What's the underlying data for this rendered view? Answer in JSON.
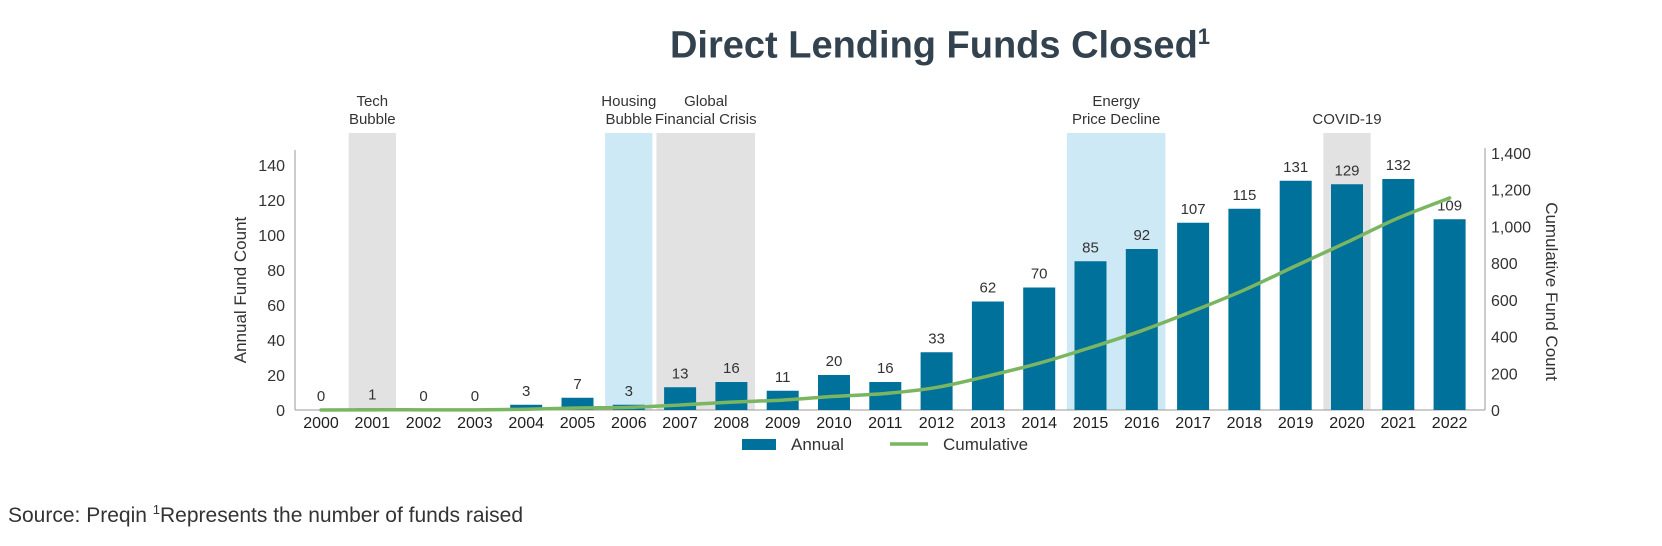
{
  "header": {
    "title": "Direct Lending Funds Closed",
    "title_sup": "1"
  },
  "footer": {
    "source": "Source: Preqin",
    "note_sup": "1",
    "note": "Represents the number of funds raised"
  },
  "colors": {
    "bar": "#00719a",
    "line": "#7ab661",
    "shade_gray": "#e2e2e2",
    "shade_blue": "#cde9f5",
    "axis": "#999999",
    "text": "#333333",
    "title": "#33424f"
  },
  "chart_data": {
    "type": "bar",
    "categories": [
      "2000",
      "2001",
      "2002",
      "2003",
      "2004",
      "2005",
      "2006",
      "2007",
      "2008",
      "2009",
      "2010",
      "2011",
      "2012",
      "2013",
      "2014",
      "2015",
      "2016",
      "2017",
      "2018",
      "2019",
      "2020",
      "2021",
      "2022"
    ],
    "series": [
      {
        "name": "Annual",
        "type": "bar",
        "axis": "left",
        "values": [
          0,
          1,
          0,
          0,
          3,
          7,
          3,
          13,
          16,
          11,
          20,
          16,
          33,
          62,
          70,
          85,
          92,
          107,
          115,
          131,
          129,
          132,
          109
        ]
      },
      {
        "name": "Cumulative",
        "type": "line",
        "axis": "right",
        "values": [
          0,
          1,
          1,
          1,
          4,
          11,
          14,
          27,
          43,
          54,
          74,
          90,
          123,
          185,
          255,
          340,
          432,
          539,
          654,
          785,
          914,
          1046,
          1155
        ]
      }
    ],
    "data_labels": [
      "0",
      "1",
      "0",
      "0",
      "3",
      "7",
      "3",
      "13",
      "16",
      "11",
      "20",
      "16",
      "33",
      "62",
      "70",
      "85",
      "92",
      "107",
      "115",
      "131",
      "129",
      "132",
      "109"
    ],
    "ylabel": "Annual Fund Count",
    "y2label": "Cumulative Fund Count",
    "ylim": [
      0,
      150
    ],
    "y2lim": [
      0,
      1400
    ],
    "yticks": [
      0,
      20,
      40,
      60,
      80,
      100,
      120,
      140
    ],
    "y2ticks": [
      0,
      200,
      400,
      600,
      800,
      1000,
      1200,
      1400
    ],
    "ytick_labels": [
      "0",
      "20",
      "40",
      "60",
      "80",
      "100",
      "120",
      "140"
    ],
    "y2tick_labels": [
      "0",
      "200",
      "400",
      "600",
      "800",
      "1,000",
      "1,200",
      "1,400"
    ],
    "legend": {
      "placement": "bottom",
      "entries": [
        "Annual",
        "Cumulative"
      ]
    },
    "events": [
      {
        "lines": [
          "Tech",
          "Bubble"
        ],
        "from": "2001",
        "to": "2001",
        "color": "gray"
      },
      {
        "lines": [
          "Housing",
          "Bubble"
        ],
        "from": "2006",
        "to": "2006",
        "color": "blue"
      },
      {
        "lines": [
          "Global",
          "Financial Crisis"
        ],
        "from": "2007",
        "to": "2008",
        "color": "gray"
      },
      {
        "lines": [
          "Energy",
          "Price Decline"
        ],
        "from": "2015",
        "to": "2016",
        "color": "blue"
      },
      {
        "lines": [
          "COVID-19"
        ],
        "from": "2020",
        "to": "2020",
        "color": "gray"
      }
    ]
  }
}
